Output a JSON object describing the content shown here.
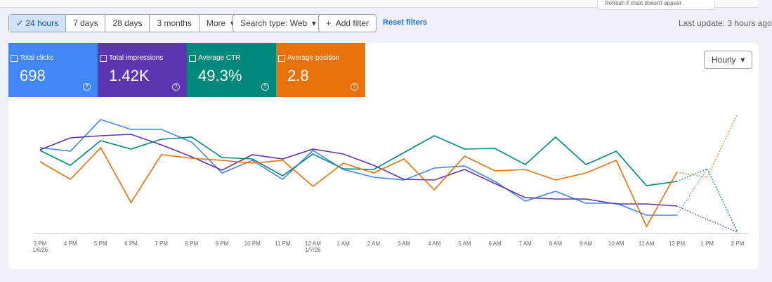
{
  "toolbar": {
    "ranges": [
      "24 hours",
      "7 days",
      "28 days",
      "3 months",
      "More"
    ],
    "search_type": "Search type: Web",
    "add_filter": "Add filter",
    "reset": "Reset filters",
    "last_update": "Last update: 3 hours ago",
    "tooltip": "Refresh if chart doesn't appear"
  },
  "metrics": [
    {
      "label": "Total clicks",
      "value": "698",
      "color": "#4285f4"
    },
    {
      "label": "Total impressions",
      "value": "1.42K",
      "color": "#5e35b1"
    },
    {
      "label": "Average CTR",
      "value": "49.3%",
      "color": "#00897b"
    },
    {
      "label": "Average position",
      "value": "2.8",
      "color": "#e8710a"
    }
  ],
  "granularity": "Hourly",
  "chart_data": {
    "type": "line",
    "categories": [
      "3 PM",
      "4 PM",
      "5 PM",
      "6 PM",
      "7 PM",
      "8 PM",
      "9 PM",
      "10 PM",
      "11 PM",
      "12 AM",
      "1 AM",
      "2 AM",
      "3 AM",
      "4 AM",
      "5 AM",
      "6 AM",
      "7 AM",
      "8 AM",
      "9 AM",
      "10 AM",
      "11 AM",
      "12 PM",
      "1 PM",
      "2 PM"
    ],
    "category_dates": [
      "1/6/26",
      null,
      null,
      null,
      null,
      null,
      null,
      null,
      null,
      "1/7/26",
      null,
      null,
      null,
      null,
      null,
      null,
      null,
      null,
      null,
      null,
      null,
      null,
      null,
      null
    ],
    "ylim": [
      0,
      180
    ],
    "dotted_from": 21,
    "series": [
      {
        "name": "Total clicks",
        "color": "#4285f4",
        "values": [
          122,
          117,
          162,
          148,
          148,
          130,
          86,
          104,
          77,
          118,
          91,
          80,
          76,
          93,
          96,
          74,
          46,
          60,
          43,
          43,
          26,
          26,
          92,
          2
        ]
      },
      {
        "name": "Total impressions",
        "color": "#5e35b1",
        "values": [
          119,
          136,
          139,
          141,
          126,
          109,
          90,
          112,
          106,
          120,
          113,
          97,
          77,
          76,
          91,
          71,
          51,
          49,
          49,
          42,
          42,
          39,
          20,
          2
        ]
      },
      {
        "name": "Average CTR",
        "color": "#00897b",
        "values": [
          118,
          97,
          132,
          120,
          134,
          137,
          108,
          106,
          82,
          113,
          92,
          91,
          115,
          139,
          120,
          121,
          98,
          137,
          98,
          117,
          68,
          74,
          92,
          2
        ]
      },
      {
        "name": "Average position",
        "color": "#e8710a",
        "values": [
          102,
          77,
          122,
          44,
          112,
          107,
          104,
          100,
          104,
          67,
          100,
          86,
          106,
          62,
          110,
          89,
          91,
          76,
          86,
          104,
          10,
          87,
          80,
          170
        ]
      }
    ]
  }
}
